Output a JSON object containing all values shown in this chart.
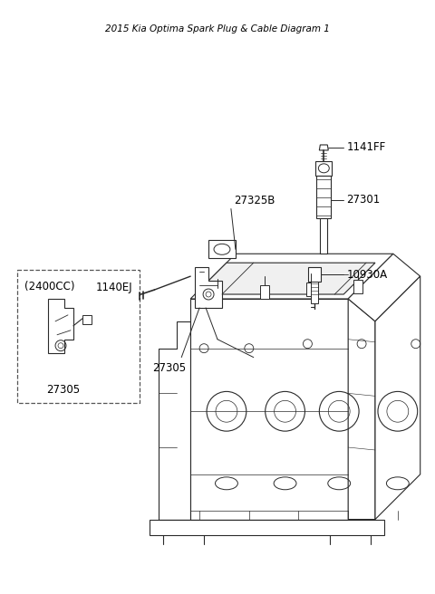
{
  "title": "2015 Kia Optima Spark Plug & Cable Diagram 1",
  "bg": "#ffffff",
  "lc": "#2a2a2a",
  "tc": "#000000",
  "label_fs": 8.5,
  "parts": {
    "coil_bolt_label": "1141FF",
    "coil_label": "27301",
    "plug_label": "10930A",
    "connector_label": "27325B",
    "wire_label": "1140EJ",
    "bracket_label": "27305",
    "bracket_inset_label": "27305",
    "inset_cc_label": "(2400CC)"
  }
}
